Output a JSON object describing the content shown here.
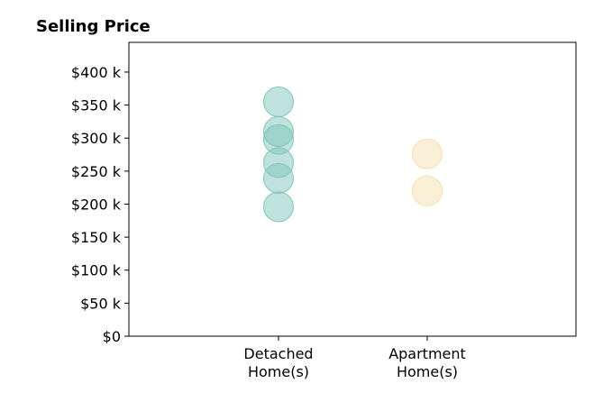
{
  "chart_data": {
    "type": "scatter",
    "title": "Selling Price",
    "xlabel": "",
    "ylabel": "",
    "categories": [
      "Detached\nHome(s)",
      "Apartment\nHome(s)"
    ],
    "ylim": [
      0,
      445000
    ],
    "y_ticks": [
      {
        "value": 0,
        "label": "$0"
      },
      {
        "value": 50000,
        "label": "$50 k"
      },
      {
        "value": 100000,
        "label": "$100 k"
      },
      {
        "value": 150000,
        "label": "$150 k"
      },
      {
        "value": 200000,
        "label": "$200 k"
      },
      {
        "value": 250000,
        "label": "$250 k"
      },
      {
        "value": 300000,
        "label": "$300 k"
      },
      {
        "value": 350000,
        "label": "$350 k"
      },
      {
        "value": 400000,
        "label": "$400 k"
      }
    ],
    "grid": false,
    "legend": false,
    "series": [
      {
        "category": "Detached\nHome(s)",
        "color": "#7fc6bc",
        "values": [
          355000,
          310000,
          298000,
          263000,
          239000,
          196000
        ]
      },
      {
        "category": "Apartment\nHome(s)",
        "color": "#f5e0b0",
        "values": [
          276000,
          220000
        ]
      }
    ]
  }
}
